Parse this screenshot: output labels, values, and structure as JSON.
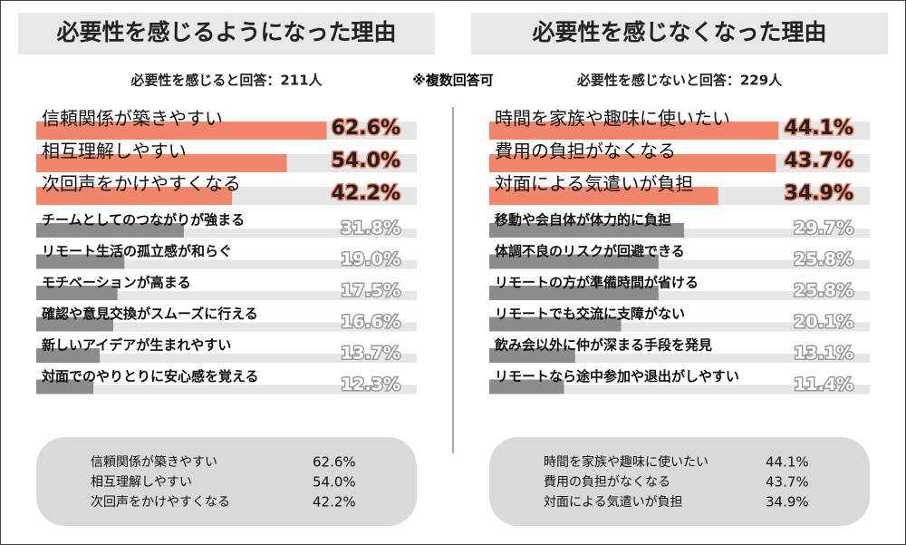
{
  "note": "※複数回答可",
  "chart_data": [
    {
      "type": "bar",
      "orientation": "horizontal",
      "title": "必要性を感じるようになった理由",
      "subtitle": "必要性を感じると回答：211人",
      "categories": [
        "信頼関係が築きやすい",
        "相互理解しやすい",
        "次回声をかけやすくなる",
        "チームとしてのつながりが強まる",
        "リモート生活の孤立感が和らぐ",
        "モチベーションが高まる",
        "確認や意見交換がスムーズに行える",
        "新しいアイデアが生まれやすい",
        "対面でのやりとりに安心感を覚える"
      ],
      "values": [
        62.6,
        54.0,
        42.2,
        31.8,
        19.0,
        17.5,
        16.6,
        13.7,
        12.3
      ],
      "value_labels": [
        "62.6%",
        "54.0%",
        "42.2%",
        "31.8%",
        "19.0%",
        "17.5%",
        "16.6%",
        "13.7%",
        "12.3%"
      ],
      "colors": [
        "#f0876b",
        "#f0876b",
        "#f0876b",
        "#8c8c8c",
        "#8c8c8c",
        "#8c8c8c",
        "#8c8c8c",
        "#8c8c8c",
        "#8c8c8c"
      ],
      "track_color": "#e6e6e6",
      "xlim": [
        0,
        82
      ]
    },
    {
      "type": "bar",
      "orientation": "horizontal",
      "title": "必要性を感じなくなった理由",
      "subtitle": "必要性を感じないと回答：229人",
      "categories": [
        "時間を家族や趣味に使いたい",
        "費用の負担がなくなる",
        "対面による気遣いが負担",
        "移動や会自体が体力的に負担",
        "体調不良のリスクが回避できる",
        "リモートの方が準備時間が省ける",
        "リモートでも交流に支障がない",
        "飲み会以外に仲が深まる手段を発見",
        "リモートなら途中参加や退出がしやすい"
      ],
      "values": [
        44.1,
        43.7,
        34.9,
        29.7,
        25.8,
        25.8,
        20.1,
        13.1,
        11.4
      ],
      "value_labels": [
        "44.1%",
        "43.7%",
        "34.9%",
        "29.7%",
        "25.8%",
        "25.8%",
        "20.1%",
        "13.1%",
        "11.4%"
      ],
      "colors": [
        "#f0876b",
        "#f0876b",
        "#f0876b",
        "#8c8c8c",
        "#8c8c8c",
        "#8c8c8c",
        "#8c8c8c",
        "#8c8c8c",
        "#8c8c8c"
      ],
      "track_color": "#e6e6e6",
      "xlim": [
        0,
        58
      ]
    }
  ]
}
